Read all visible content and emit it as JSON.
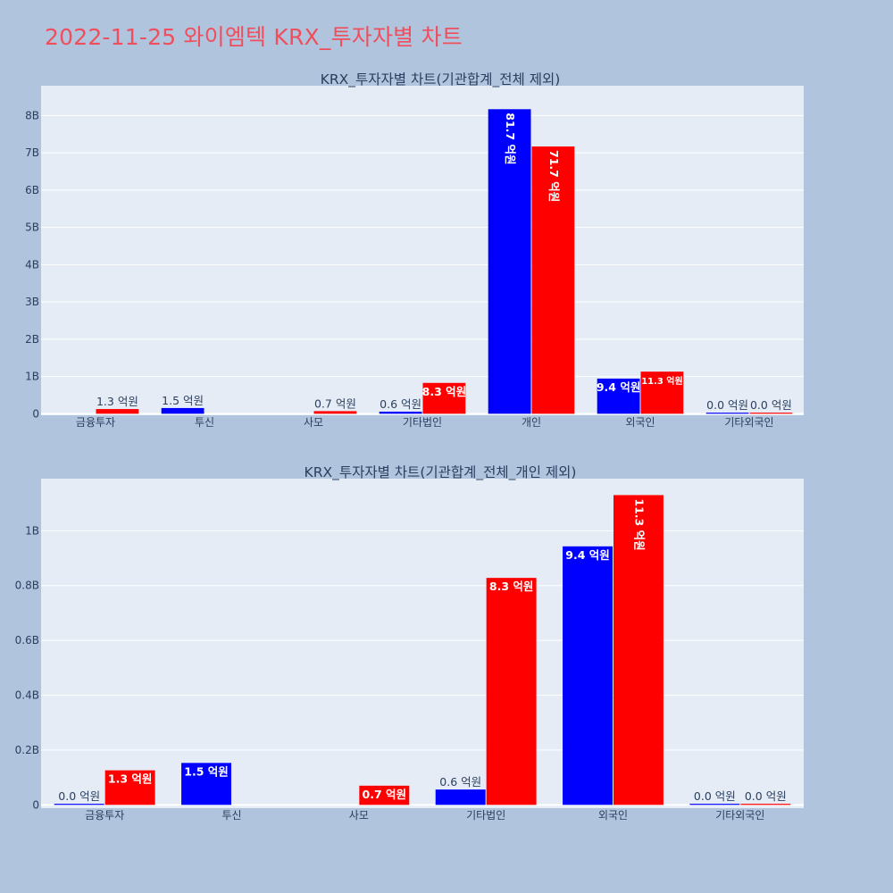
{
  "page": {
    "title": "2022-11-25 와이엠텍 KRX_투자자별 차트"
  },
  "colors": {
    "background": "#b0c4de",
    "plot_bg": "#e5ecf6",
    "grid": "#ffffff",
    "title": "#ef4f5d",
    "text": "#2a3f5f",
    "buy": "#0000ff",
    "sell": "#ff0000"
  },
  "chart_data": [
    {
      "type": "bar",
      "title": "KRX_투자자별 차트(기관합계_전체 제외)",
      "categories": [
        "금융투자",
        "투신",
        "사모",
        "기타법인",
        "개인",
        "외국인",
        "기타외국인"
      ],
      "yticks": [
        0,
        1000000000,
        2000000000,
        3000000000,
        4000000000,
        5000000000,
        6000000000,
        7000000000,
        8000000000
      ],
      "ytick_labels": [
        "0",
        "1B",
        "2B",
        "3B",
        "4B",
        "5B",
        "6B",
        "7B",
        "8B"
      ],
      "ylim": [
        -40000000,
        8800000000
      ],
      "grid": true,
      "series": [
        {
          "color": "#0000ff",
          "values": [
            0,
            153000000,
            0,
            56000000,
            8170000000,
            943000000,
            0
          ],
          "labels": [
            "",
            "1.5 억원",
            "",
            "0.6 억원",
            "81.7 억원",
            "9.4 억원",
            "0.0 억원"
          ]
        },
        {
          "color": "#ff0000",
          "values": [
            126000000,
            0,
            70000000,
            828000000,
            7170000000,
            1130000000,
            0
          ],
          "labels": [
            "1.3 억원",
            "",
            "0.7 억원",
            "8.3 억원",
            "71.7 억원",
            "11.3 억원",
            "0.0 억원"
          ]
        }
      ]
    },
    {
      "type": "bar",
      "title": "KRX_투자자별 차트(기관합계_전체_개인 제외)",
      "categories": [
        "금융투자",
        "투신",
        "사모",
        "기타법인",
        "외국인",
        "기타외국인"
      ],
      "yticks": [
        0,
        200000000,
        400000000,
        600000000,
        800000000,
        1000000000
      ],
      "ytick_labels": [
        "0",
        "0.2B",
        "0.4B",
        "0.6B",
        "0.8B",
        "1B"
      ],
      "ylim": [
        -12000000,
        1190000000
      ],
      "grid": true,
      "series": [
        {
          "color": "#0000ff",
          "values": [
            0,
            153000000,
            0,
            56000000,
            943000000,
            0
          ],
          "labels": [
            "0.0 억원",
            "1.5 억원",
            "",
            "0.6 억원",
            "9.4 억원",
            "0.0 억원"
          ]
        },
        {
          "color": "#ff0000",
          "values": [
            126000000,
            0,
            70000000,
            828000000,
            1130000000,
            0
          ],
          "labels": [
            "1.3 억원",
            "",
            "0.7 억원",
            "8.3 억원",
            "11.3 억원",
            "0.0 억원"
          ]
        }
      ]
    }
  ]
}
